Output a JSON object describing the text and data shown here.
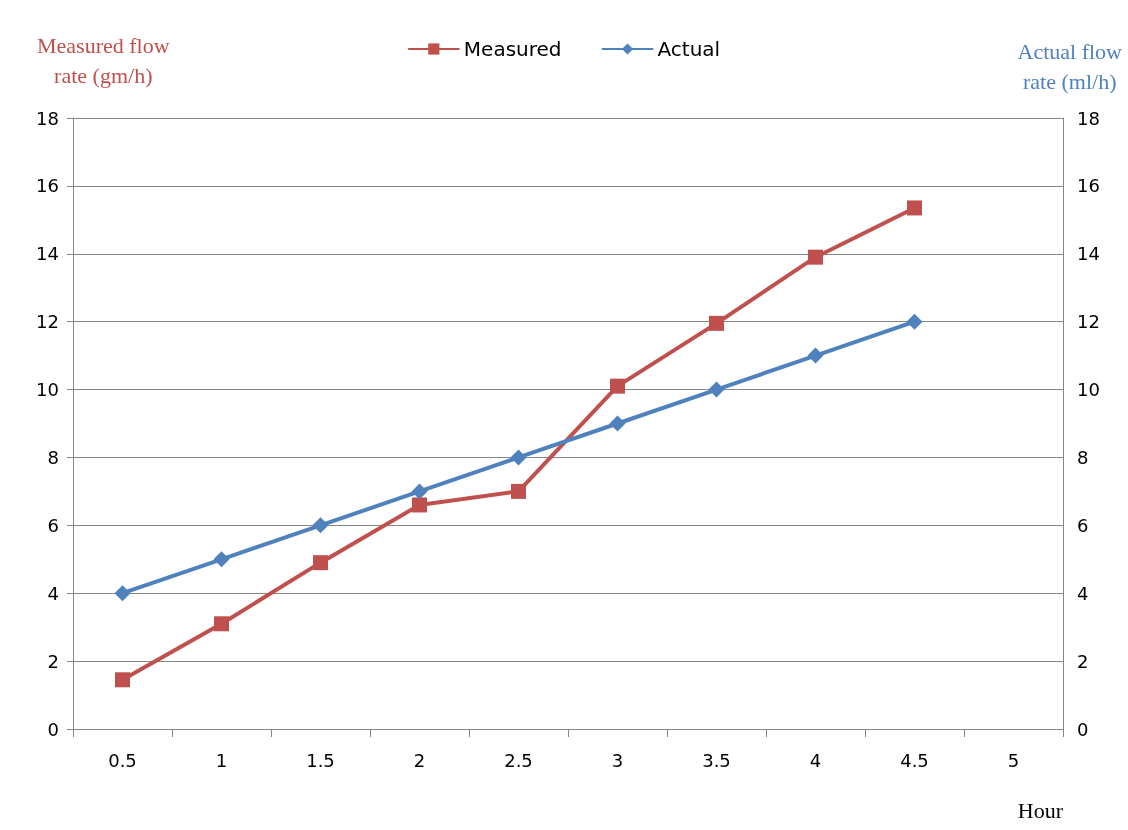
{
  "chart_data": {
    "type": "line",
    "ylabel": "Measured flow rate (gm/h)",
    "y2label": "Actual flow rate (ml/h)",
    "xlabel": "Hour",
    "categories": [
      "0.5",
      "1",
      "1.5",
      "2",
      "2.5",
      "3",
      "3.5",
      "4",
      "4.5",
      "5"
    ],
    "series": [
      {
        "name": "Measured",
        "color": "#c0504d",
        "marker": "square",
        "values": [
          1.45,
          3.1,
          4.9,
          6.6,
          7.0,
          10.1,
          11.95,
          13.9,
          15.35,
          null
        ]
      },
      {
        "name": "Actual",
        "color": "#4f81bd",
        "marker": "diamond",
        "axis": "y2",
        "values": [
          4,
          5,
          6,
          7,
          8,
          9,
          10,
          11,
          12,
          null
        ]
      }
    ],
    "ylim": [
      0,
      18
    ],
    "yticks": [
      0,
      2,
      4,
      6,
      8,
      10,
      12,
      14,
      16,
      18
    ],
    "y2lim": [
      0,
      18
    ],
    "y2ticks": [
      0,
      2,
      4,
      6,
      8,
      10,
      12,
      14,
      16,
      18
    ],
    "grid": "y",
    "legend": "top"
  }
}
